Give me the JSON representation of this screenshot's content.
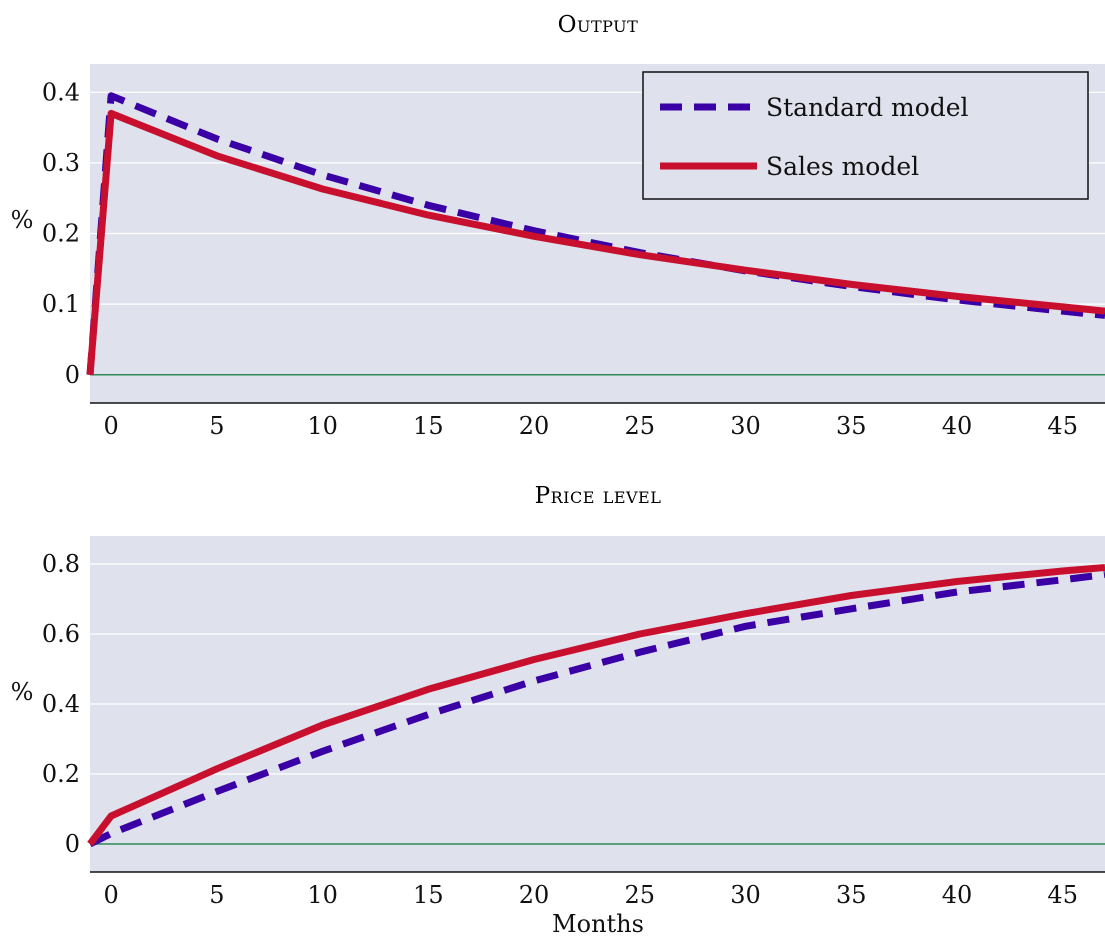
{
  "colors": {
    "panel_bg": "#dfe1ec",
    "grid": "#ffffff",
    "zero_line": "#2e8b57",
    "standard": "#3a00a6",
    "sales": "#c8102e"
  },
  "chart_data": [
    {
      "type": "line",
      "title": "Output",
      "xlabel": "",
      "ylabel": "%",
      "xlim": [
        -1,
        47
      ],
      "ylim": [
        -0.04,
        0.44
      ],
      "xticks": [
        0,
        5,
        10,
        15,
        20,
        25,
        30,
        35,
        40,
        45
      ],
      "yticks": [
        0,
        0.1,
        0.2,
        0.3,
        0.4
      ],
      "ytick_labels": [
        "0",
        "0.1",
        "0.2",
        "0.3",
        "0.4"
      ],
      "grid": true,
      "legend": {
        "position": "top-right",
        "entries": [
          "Standard model",
          "Sales model"
        ]
      },
      "series": [
        {
          "name": "Standard model",
          "style": "dashed",
          "x": [
            -1,
            0,
            5,
            10,
            15,
            20,
            25,
            30,
            35,
            40,
            45,
            47
          ],
          "values": [
            0,
            0.395,
            0.334,
            0.283,
            0.24,
            0.204,
            0.173,
            0.147,
            0.125,
            0.106,
            0.09,
            0.084
          ]
        },
        {
          "name": "Sales model",
          "style": "solid",
          "x": [
            -1,
            0,
            5,
            10,
            15,
            20,
            25,
            30,
            35,
            40,
            45,
            47
          ],
          "values": [
            0,
            0.37,
            0.31,
            0.263,
            0.226,
            0.196,
            0.17,
            0.148,
            0.128,
            0.111,
            0.096,
            0.09
          ]
        }
      ]
    },
    {
      "type": "line",
      "title": "Price level",
      "xlabel": "Months",
      "ylabel": "%",
      "xlim": [
        -1,
        47
      ],
      "ylim": [
        -0.08,
        0.88
      ],
      "xticks": [
        0,
        5,
        10,
        15,
        20,
        25,
        30,
        35,
        40,
        45
      ],
      "yticks": [
        0,
        0.2,
        0.4,
        0.6,
        0.8
      ],
      "ytick_labels": [
        "0",
        "0.2",
        "0.4",
        "0.6",
        "0.8"
      ],
      "grid": true,
      "series": [
        {
          "name": "Standard model",
          "style": "dashed",
          "x": [
            -1,
            0,
            5,
            10,
            15,
            20,
            25,
            30,
            35,
            40,
            45,
            47
          ],
          "values": [
            0,
            0.03,
            0.15,
            0.265,
            0.37,
            0.466,
            0.548,
            0.622,
            0.672,
            0.72,
            0.755,
            0.77
          ]
        },
        {
          "name": "Sales model",
          "style": "solid",
          "x": [
            -1,
            0,
            5,
            10,
            15,
            20,
            25,
            30,
            35,
            40,
            45,
            47
          ],
          "values": [
            0,
            0.08,
            0.215,
            0.34,
            0.442,
            0.527,
            0.6,
            0.658,
            0.71,
            0.75,
            0.78,
            0.79
          ]
        }
      ]
    }
  ]
}
